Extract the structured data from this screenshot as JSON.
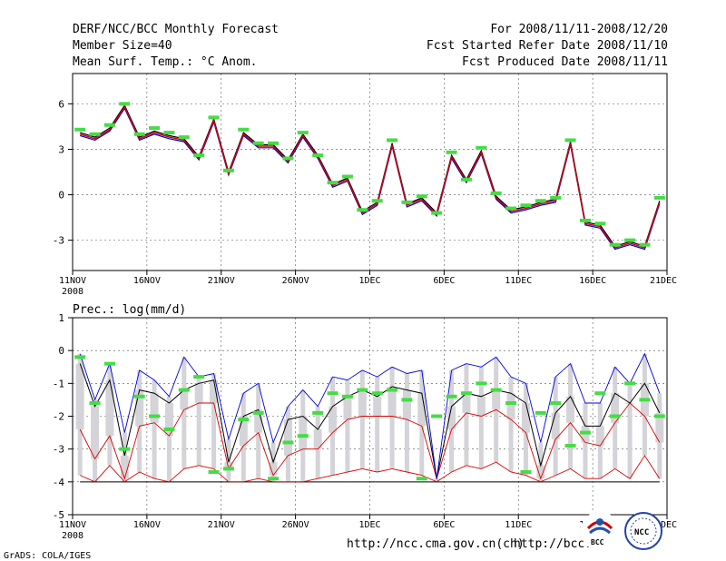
{
  "header": {
    "title": "DERF/NCC/BCC Monthly Forecast",
    "member_size": "Member Size=40",
    "temp_label": "Mean Surf. Temp.: °C Anom.",
    "period": "For 2008/11/11-2008/12/20",
    "start_date": "Fcst Started Refer Date 2008/11/10",
    "produced_date": "Fcst Produced Date 2008/11/11"
  },
  "footer": {
    "grads": "GrADS: COLA/IGES",
    "url1": "http://ncc.cma.gov.cn(ch)",
    "url2": "http://bcc.c",
    "bcc_logo": "BCC",
    "ncc_logo": "NCC"
  },
  "colors": {
    "grid": "#333333",
    "obs": "#44dd44",
    "member_bar": "#d4d4d8",
    "upper": "#0000dd",
    "lower": "#dd0000",
    "mean": "#000000"
  },
  "chart_data": [
    {
      "type": "line",
      "title": "Mean Surf. Temp.: °C Anom.",
      "x_ticks": [
        "11NOV",
        "16NOV",
        "21NOV",
        "26NOV",
        "1DEC",
        "6DEC",
        "11DEC",
        "16DEC",
        "21DEC"
      ],
      "x_sub": "2008",
      "yticks": [
        6,
        3,
        0,
        -3
      ],
      "ylim": [
        -5,
        8
      ],
      "series": [
        {
          "name": "ensemble-mean",
          "color": "#cc0000",
          "values": [
            4.0,
            3.7,
            4.3,
            5.8,
            3.7,
            4.1,
            3.8,
            3.6,
            2.4,
            4.9,
            1.4,
            4.0,
            3.2,
            3.2,
            2.2,
            3.9,
            2.5,
            0.6,
            1.0,
            -1.2,
            -0.6,
            3.3,
            -0.7,
            -0.3,
            -1.3,
            2.5,
            0.9,
            2.8,
            -0.2,
            -1.1,
            -0.9,
            -0.6,
            -0.4,
            3.4,
            -1.9,
            -2.1,
            -3.5,
            -3.2,
            -3.5,
            -0.5
          ]
        },
        {
          "name": "upper",
          "color": "#000000",
          "values": [
            4.1,
            3.8,
            4.4,
            5.9,
            3.8,
            4.2,
            3.9,
            3.7,
            2.5,
            5.0,
            1.5,
            4.1,
            3.3,
            3.3,
            2.3,
            4.0,
            2.6,
            0.7,
            1.1,
            -1.1,
            -0.5,
            3.4,
            -0.6,
            -0.2,
            -1.2,
            2.6,
            1.0,
            2.9,
            -0.1,
            -1.0,
            -0.8,
            -0.5,
            -0.3,
            3.5,
            -1.8,
            -2.0,
            -3.4,
            -3.1,
            -3.4,
            -0.4
          ]
        },
        {
          "name": "lower",
          "color": "#0000cc",
          "values": [
            3.9,
            3.6,
            4.2,
            5.7,
            3.6,
            4.0,
            3.7,
            3.5,
            2.3,
            4.8,
            1.3,
            3.9,
            3.1,
            3.1,
            2.1,
            3.8,
            2.4,
            0.5,
            0.9,
            -1.3,
            -0.7,
            3.2,
            -0.8,
            -0.4,
            -1.4,
            2.4,
            0.8,
            2.7,
            -0.3,
            -1.2,
            -1.0,
            -0.7,
            -0.5,
            3.3,
            -2.0,
            -2.2,
            -3.6,
            -3.3,
            -3.6,
            -0.6
          ]
        },
        {
          "name": "observed",
          "color": "#44dd44",
          "values": [
            4.3,
            4.0,
            4.6,
            6.0,
            4.0,
            4.4,
            4.1,
            3.8,
            2.6,
            5.1,
            1.6,
            4.3,
            3.4,
            3.4,
            2.4,
            4.1,
            2.6,
            0.8,
            1.2,
            -1.0,
            -0.4,
            3.6,
            -0.5,
            -0.1,
            -1.2,
            2.8,
            1.0,
            3.1,
            0.1,
            -0.9,
            -0.7,
            -0.4,
            -0.2,
            3.6,
            -1.7,
            -1.9,
            -3.3,
            -3.0,
            -3.3,
            -0.2
          ]
        }
      ]
    },
    {
      "type": "line",
      "title": "Prec.: log(mm/d)",
      "x_ticks": [
        "11NOV",
        "16NOV",
        "21NOV",
        "26NOV",
        "1DEC",
        "6DEC",
        "11DEC",
        "16DEC",
        "21DEC"
      ],
      "x_sub": "2008",
      "yticks": [
        1,
        0,
        -1,
        -2,
        -3,
        -4,
        -5
      ],
      "ylim": [
        -5,
        1
      ],
      "series": [
        {
          "name": "upper",
          "color": "#0000dd",
          "values": [
            -0.1,
            -1.5,
            -0.4,
            -2.5,
            -0.6,
            -0.9,
            -1.4,
            -0.2,
            -0.8,
            -0.7,
            -2.7,
            -1.3,
            -1.0,
            -2.8,
            -1.7,
            -1.2,
            -1.7,
            -0.8,
            -0.9,
            -0.6,
            -0.8,
            -0.5,
            -0.7,
            -0.6,
            -3.9,
            -0.6,
            -0.4,
            -0.5,
            -0.2,
            -0.8,
            -1.0,
            -2.8,
            -0.8,
            -0.4,
            -1.6,
            -1.6,
            -0.5,
            -1.0,
            -0.1,
            -1.3
          ]
        },
        {
          "name": "ensemble-mean",
          "color": "#000000",
          "values": [
            -0.4,
            -1.7,
            -0.9,
            -3.2,
            -1.2,
            -1.3,
            -1.6,
            -1.2,
            -1.0,
            -0.9,
            -3.4,
            -2.0,
            -1.8,
            -3.4,
            -2.1,
            -2.0,
            -2.4,
            -1.7,
            -1.4,
            -1.2,
            -1.4,
            -1.1,
            -1.2,
            -1.3,
            -3.9,
            -1.7,
            -1.3,
            -1.4,
            -1.2,
            -1.3,
            -1.6,
            -3.5,
            -1.9,
            -1.4,
            -2.3,
            -2.3,
            -1.3,
            -1.6,
            -1.0,
            -1.9
          ]
        },
        {
          "name": "lower",
          "color": "#dd0000",
          "values": [
            -2.4,
            -3.3,
            -2.6,
            -3.9,
            -2.3,
            -2.2,
            -2.6,
            -1.8,
            -1.6,
            -1.6,
            -3.6,
            -2.9,
            -2.5,
            -3.8,
            -3.2,
            -3.0,
            -3.0,
            -2.5,
            -2.1,
            -2.0,
            -2.0,
            -2.0,
            -2.1,
            -2.3,
            -3.9,
            -2.4,
            -1.9,
            -2.0,
            -1.8,
            -2.1,
            -2.5,
            -3.9,
            -2.7,
            -2.2,
            -2.8,
            -2.9,
            -2.2,
            -1.6,
            -2.0,
            -2.8
          ]
        },
        {
          "name": "lowest",
          "color": "#dd0000",
          "values": [
            -3.8,
            -4.0,
            -3.5,
            -4.0,
            -3.7,
            -3.9,
            -4.0,
            -3.6,
            -3.5,
            -3.6,
            -4.0,
            -4.0,
            -3.9,
            -4.0,
            -4.0,
            -4.0,
            -3.9,
            -3.8,
            -3.7,
            -3.6,
            -3.7,
            -3.6,
            -3.7,
            -3.8,
            -4.0,
            -3.7,
            -3.5,
            -3.6,
            -3.4,
            -3.7,
            -3.8,
            -4.0,
            -3.8,
            -3.6,
            -3.9,
            -3.9,
            -3.6,
            -3.9,
            -3.2,
            -3.9
          ]
        },
        {
          "name": "observed",
          "color": "#44dd44",
          "values": [
            -0.2,
            -1.6,
            -0.4,
            -3.0,
            -1.4,
            -2.0,
            -2.4,
            -1.2,
            -0.8,
            -3.7,
            -3.6,
            -2.1,
            -1.9,
            -3.9,
            -2.8,
            -2.6,
            -1.9,
            -1.3,
            -1.4,
            -1.2,
            -1.3,
            -1.2,
            -1.5,
            -3.9,
            -2.0,
            -1.4,
            -1.3,
            -1.0,
            -1.2,
            -1.6,
            -3.7,
            -1.9,
            -1.6,
            -2.9,
            -2.5,
            -1.3,
            -2.0,
            -1.0,
            -1.5,
            -2.0
          ]
        }
      ]
    }
  ]
}
